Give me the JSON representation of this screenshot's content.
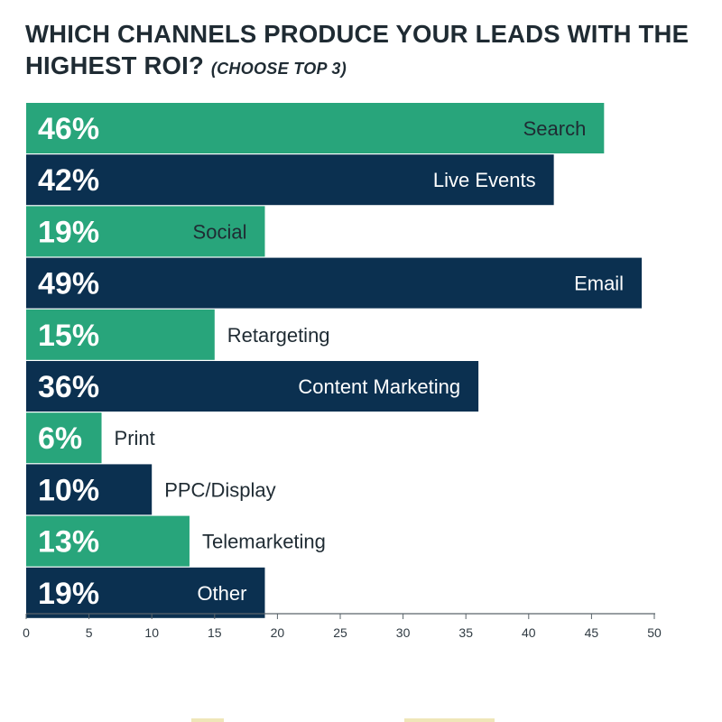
{
  "title": "WHICH CHANNELS PRODUCE YOUR LEADS WITH THE HIGHEST ROI?",
  "subtitle": "(CHOOSE TOP 3)",
  "colors": {
    "green": "#28a57b",
    "navy": "#0b3050",
    "label_dark": "#1f2b33",
    "axis": "#5a646b"
  },
  "chart_data": {
    "type": "bar",
    "orientation": "horizontal",
    "title": "WHICH CHANNELS PRODUCE YOUR LEADS WITH THE HIGHEST ROI? (CHOOSE TOP 3)",
    "categories": [
      "Search",
      "Live Events",
      "Social",
      "Email",
      "Retargeting",
      "Content Marketing",
      "Print",
      "PPC/Display",
      "Telemarketing",
      "Other"
    ],
    "values": [
      46,
      42,
      19,
      49,
      15,
      36,
      6,
      10,
      13,
      19
    ],
    "value_labels": [
      "46%",
      "42%",
      "19%",
      "49%",
      "15%",
      "36%",
      "6%",
      "10%",
      "13%",
      "19%"
    ],
    "bar_colors": [
      "green",
      "navy",
      "green",
      "navy",
      "green",
      "navy",
      "green",
      "navy",
      "green",
      "navy"
    ],
    "xlim": [
      0,
      50
    ],
    "xticks": [
      0,
      5,
      10,
      15,
      20,
      25,
      30,
      35,
      40,
      45,
      50
    ],
    "xlabel": "",
    "ylabel": "",
    "grid": false,
    "legend": "none"
  }
}
